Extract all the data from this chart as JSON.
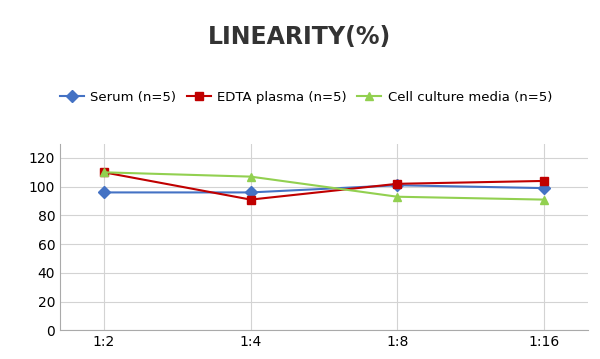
{
  "title": "LINEARITY(%)",
  "x_labels": [
    "1:2",
    "1:4",
    "1:8",
    "1:16"
  ],
  "series": [
    {
      "label": "Serum (n=5)",
      "values": [
        96,
        96,
        101,
        99
      ],
      "color": "#4472C4",
      "marker": "D"
    },
    {
      "label": "EDTA plasma (n=5)",
      "values": [
        110,
        91,
        102,
        104
      ],
      "color": "#C00000",
      "marker": "s"
    },
    {
      "label": "Cell culture media (n=5)",
      "values": [
        110,
        107,
        93,
        91
      ],
      "color": "#92D050",
      "marker": "^"
    }
  ],
  "ylim": [
    0,
    130
  ],
  "yticks": [
    0,
    20,
    40,
    60,
    80,
    100,
    120
  ],
  "title_fontsize": 17,
  "legend_fontsize": 9.5,
  "tick_fontsize": 10,
  "background_color": "#FFFFFF",
  "grid_color": "#D3D3D3"
}
